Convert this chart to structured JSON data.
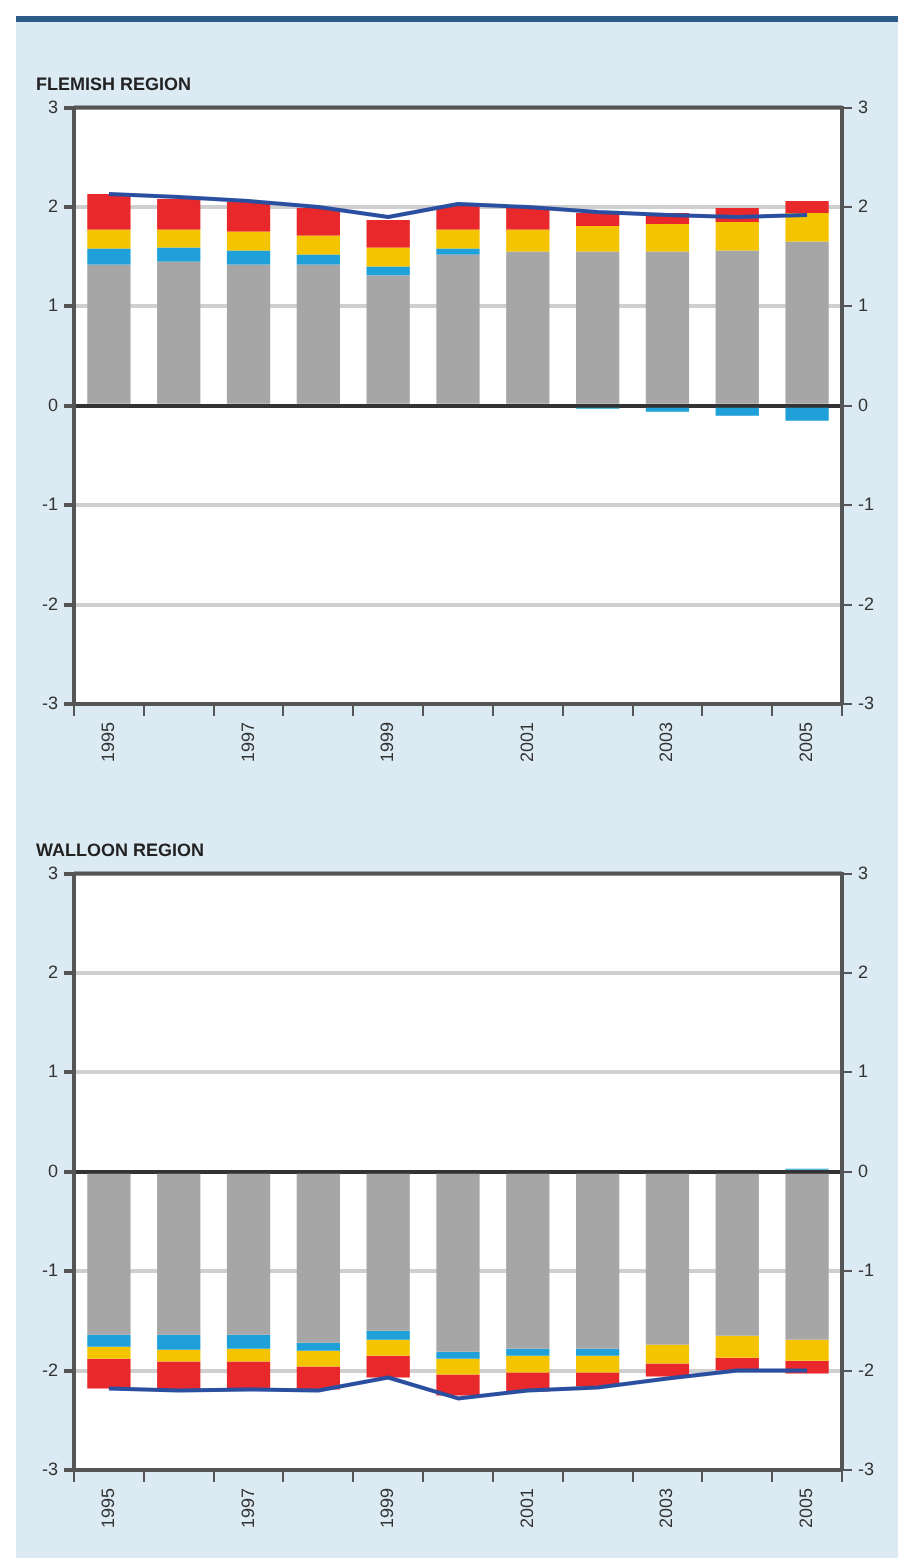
{
  "chart_data": [
    {
      "type": "bar",
      "title": "FLEMISH REGION",
      "stacked": true,
      "grid": "y",
      "categories": [
        "1995",
        null,
        "1997",
        null,
        "1999",
        null,
        "2001",
        null,
        "2003",
        null,
        "2005"
      ],
      "series": [
        {
          "color": "#a6a6a6",
          "values": [
            1.42,
            1.45,
            1.42,
            1.42,
            1.31,
            1.52,
            1.55,
            1.55,
            1.55,
            1.56,
            1.65
          ]
        },
        {
          "color": "#1fa0d8",
          "values": [
            0.16,
            0.14,
            0.14,
            0.1,
            0.09,
            0.06,
            0,
            -0.03,
            -0.06,
            -0.1,
            -0.15
          ]
        },
        {
          "color": "#f5c400",
          "values": [
            0.19,
            0.18,
            0.19,
            0.19,
            0.19,
            0.19,
            0.22,
            0.26,
            0.28,
            0.29,
            0.29
          ]
        },
        {
          "color": "#e8282b",
          "values": [
            0.36,
            0.31,
            0.3,
            0.28,
            0.28,
            0.24,
            0.22,
            0.13,
            0.11,
            0.14,
            0.12
          ]
        },
        {
          "type": "line",
          "color": "#2a4fa0",
          "values": [
            2.13,
            2.1,
            2.06,
            2.0,
            1.9,
            2.03,
            2.0,
            1.95,
            1.92,
            1.9,
            1.92
          ]
        }
      ],
      "ylim": [
        -3,
        3
      ],
      "yticks": [
        -3,
        -2,
        -1,
        0,
        1,
        2,
        3
      ],
      "y2lim": [
        -3,
        3
      ],
      "y2ticks": [
        -3,
        -2,
        -1,
        0,
        1,
        2,
        3
      ]
    },
    {
      "type": "bar",
      "title": "WALLOON REGION",
      "stacked": true,
      "grid": "y",
      "categories": [
        "1995",
        null,
        "1997",
        null,
        "1999",
        null,
        "2001",
        null,
        "2003",
        null,
        "2005"
      ],
      "series": [
        {
          "color": "#a6a6a6",
          "values": [
            -1.64,
            -1.64,
            -1.64,
            -1.72,
            -1.6,
            -1.81,
            -1.78,
            -1.78,
            -1.74,
            -1.65,
            -1.69
          ]
        },
        {
          "color": "#1fa0d8",
          "values": [
            -0.12,
            -0.15,
            -0.14,
            -0.08,
            -0.09,
            -0.07,
            -0.07,
            -0.07,
            0,
            0,
            0.03
          ]
        },
        {
          "color": "#f5c400",
          "values": [
            -0.12,
            -0.12,
            -0.13,
            -0.16,
            -0.16,
            -0.16,
            -0.17,
            -0.17,
            -0.19,
            -0.22,
            -0.21
          ]
        },
        {
          "color": "#e8282b",
          "values": [
            -0.3,
            -0.28,
            -0.29,
            -0.23,
            -0.22,
            -0.21,
            -0.19,
            -0.14,
            -0.13,
            -0.13,
            -0.13
          ]
        },
        {
          "type": "line",
          "color": "#2a4fa0",
          "values": [
            -2.18,
            -2.2,
            -2.19,
            -2.2,
            -2.07,
            -2.28,
            -2.2,
            -2.17,
            -2.08,
            -2.0,
            -2.0
          ]
        }
      ],
      "ylim": [
        -3,
        3
      ],
      "yticks": [
        -3,
        -2,
        -1,
        0,
        1,
        2,
        3
      ],
      "y2lim": [
        -3,
        3
      ],
      "y2ticks": [
        -3,
        -2,
        -1,
        0,
        1,
        2,
        3
      ]
    }
  ]
}
